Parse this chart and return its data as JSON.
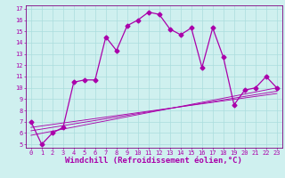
{
  "xlabel": "Windchill (Refroidissement éolien,°C)",
  "background_color": "#cff0ef",
  "grid_color": "#aadddd",
  "line_color": "#aa00aa",
  "xlim": [
    -0.5,
    23.5
  ],
  "ylim": [
    4.7,
    17.3
  ],
  "xticks": [
    0,
    1,
    2,
    3,
    4,
    5,
    6,
    7,
    8,
    9,
    10,
    11,
    12,
    13,
    14,
    15,
    16,
    17,
    18,
    19,
    20,
    21,
    22,
    23
  ],
  "yticks": [
    5,
    6,
    7,
    8,
    9,
    10,
    11,
    12,
    13,
    14,
    15,
    16,
    17
  ],
  "main_x": [
    0,
    1,
    2,
    3,
    4,
    5,
    6,
    7,
    8,
    9,
    10,
    11,
    12,
    13,
    14,
    15,
    16,
    17,
    18,
    19,
    20,
    21,
    22,
    23
  ],
  "main_y": [
    7.0,
    5.0,
    6.0,
    6.5,
    10.5,
    10.7,
    10.7,
    14.5,
    13.3,
    15.5,
    16.0,
    16.7,
    16.5,
    15.2,
    14.7,
    15.3,
    11.8,
    15.3,
    12.7,
    8.5,
    9.8,
    10.0,
    11.0,
    10.0
  ],
  "line1_x": [
    0,
    23
  ],
  "line1_y": [
    5.8,
    10.0
  ],
  "line2_x": [
    0,
    23
  ],
  "line2_y": [
    6.2,
    9.7
  ],
  "line3_x": [
    0,
    23
  ],
  "line3_y": [
    6.5,
    9.5
  ],
  "marker": "D",
  "markersize": 2.5,
  "linewidth": 0.9,
  "tick_fontsize": 5,
  "xlabel_fontsize": 6.5,
  "spine_color": "#800080"
}
